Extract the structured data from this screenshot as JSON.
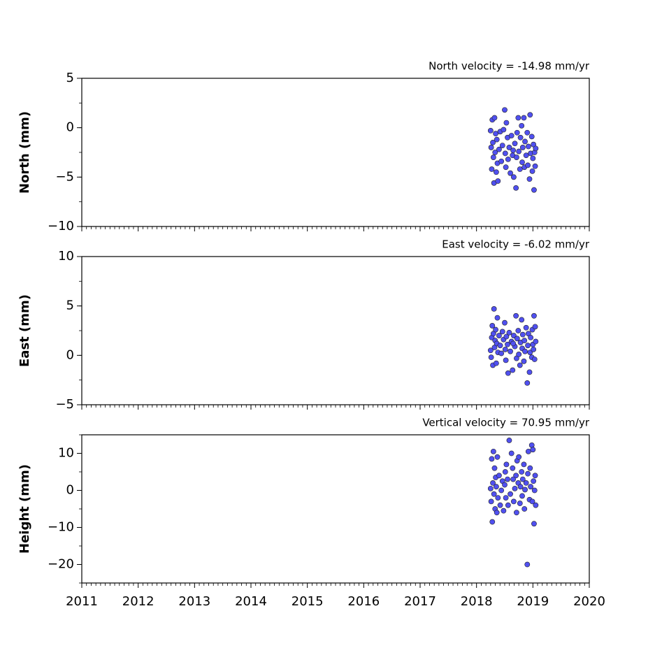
{
  "chart_data": [
    {
      "type": "scatter",
      "title": "North velocity = -14.98 mm/yr",
      "ylabel": "North (mm)",
      "xlim": [
        2011,
        2020
      ],
      "xticks": [
        2011,
        2012,
        2013,
        2014,
        2015,
        2016,
        2017,
        2018,
        2019,
        2020
      ],
      "show_xticklabels": false,
      "xminor_per_tick": 12,
      "ylim": [
        -10,
        5
      ],
      "yticks": [
        {
          "value": -10,
          "label": "−10"
        },
        {
          "value": -5,
          "label": "−5"
        },
        0,
        5
      ],
      "yminor_per_tick": 2,
      "color": "#5050f0",
      "x": [
        2018.25,
        2018.26,
        2018.27,
        2018.28,
        2018.29,
        2018.3,
        2018.31,
        2018.32,
        2018.33,
        2018.34,
        2018.35,
        2018.36,
        2018.37,
        2018.38,
        2018.4,
        2018.42,
        2018.44,
        2018.46,
        2018.48,
        2018.5,
        2018.51,
        2018.52,
        2018.53,
        2018.55,
        2018.56,
        2018.58,
        2018.6,
        2018.62,
        2018.64,
        2018.66,
        2018.68,
        2018.7,
        2018.71,
        2018.72,
        2018.74,
        2018.75,
        2018.77,
        2018.78,
        2018.8,
        2018.81,
        2018.82,
        2018.84,
        2018.85,
        2018.86,
        2018.88,
        2018.9,
        2018.91,
        2018.92,
        2018.94,
        2018.95,
        2018.96,
        2018.98,
        2018.99,
        2019.0,
        2019.01,
        2019.02,
        2019.03,
        2019.04,
        2019.05,
        2018.65
      ],
      "values": [
        -0.3,
        -2.0,
        -4.2,
        0.8,
        -1.5,
        -3.0,
        -5.6,
        1.0,
        -2.5,
        -0.6,
        -4.5,
        -1.2,
        -3.6,
        -5.4,
        -2.2,
        -0.4,
        -3.4,
        -1.8,
        -0.2,
        1.8,
        -2.6,
        -4.0,
        0.5,
        -1.0,
        -3.2,
        -2.0,
        -4.6,
        -0.8,
        -2.8,
        -5.0,
        -1.6,
        -6.1,
        -3.0,
        -0.5,
        1.0,
        -2.4,
        -4.2,
        -1.0,
        0.2,
        -3.5,
        -2.0,
        1.0,
        -4.0,
        -1.4,
        -2.8,
        -0.5,
        -3.8,
        -1.9,
        -5.2,
        1.3,
        -2.6,
        -0.9,
        -4.4,
        -3.1,
        -1.7,
        -6.3,
        -2.5,
        -3.9,
        -2.1,
        -2.3
      ]
    },
    {
      "type": "scatter",
      "title": "East velocity = -6.02 mm/yr",
      "ylabel": "East (mm)",
      "xlim": [
        2011,
        2020
      ],
      "xticks": [
        2011,
        2012,
        2013,
        2014,
        2015,
        2016,
        2017,
        2018,
        2019,
        2020
      ],
      "show_xticklabels": false,
      "xminor_per_tick": 12,
      "ylim": [
        -5,
        10
      ],
      "yticks": [
        {
          "value": -5,
          "label": "−5"
        },
        0,
        5,
        10
      ],
      "yminor_per_tick": 2,
      "color": "#5050f0",
      "x": [
        2018.25,
        2018.26,
        2018.27,
        2018.28,
        2018.29,
        2018.3,
        2018.31,
        2018.32,
        2018.33,
        2018.34,
        2018.35,
        2018.36,
        2018.37,
        2018.38,
        2018.4,
        2018.42,
        2018.44,
        2018.46,
        2018.48,
        2018.5,
        2018.51,
        2018.52,
        2018.53,
        2018.55,
        2018.56,
        2018.58,
        2018.6,
        2018.62,
        2018.64,
        2018.66,
        2018.68,
        2018.7,
        2018.71,
        2018.72,
        2018.74,
        2018.75,
        2018.77,
        2018.78,
        2018.8,
        2018.81,
        2018.82,
        2018.84,
        2018.85,
        2018.86,
        2018.88,
        2018.9,
        2018.91,
        2018.92,
        2018.94,
        2018.95,
        2018.96,
        2018.98,
        2018.99,
        2019.0,
        2019.01,
        2019.02,
        2019.03,
        2019.04,
        2019.05,
        2018.65
      ],
      "values": [
        0.5,
        -0.2,
        1.8,
        3.0,
        -1.0,
        2.2,
        4.7,
        0.8,
        1.5,
        2.6,
        -0.8,
        1.2,
        3.8,
        0.3,
        2.0,
        1.0,
        0.2,
        2.4,
        1.6,
        3.3,
        0.6,
        -0.5,
        1.9,
        1.1,
        -1.8,
        2.3,
        0.4,
        1.4,
        -1.5,
        2.0,
        0.9,
        4.0,
        -0.3,
        1.7,
        2.5,
        0.1,
        -1.0,
        1.3,
        3.6,
        0.7,
        2.1,
        -0.6,
        1.5,
        0.4,
        2.8,
        -2.8,
        1.0,
        2.2,
        -1.7,
        0.3,
        1.8,
        -0.2,
        2.6,
        1.1,
        0.6,
        4.0,
        -0.4,
        2.9,
        1.4,
        1.2
      ]
    },
    {
      "type": "scatter",
      "title": "Vertical velocity = 70.95 mm/yr",
      "ylabel": "Height (mm)",
      "xlim": [
        2011,
        2020
      ],
      "xticks": [
        2011,
        2012,
        2013,
        2014,
        2015,
        2016,
        2017,
        2018,
        2019,
        2020
      ],
      "show_xticklabels": true,
      "xminor_per_tick": 12,
      "ylim": [
        -25,
        15
      ],
      "yticks": [
        {
          "value": -20,
          "label": "−20"
        },
        {
          "value": -10,
          "label": "−10"
        },
        0,
        10
      ],
      "yminor_per_tick": 2,
      "color": "#5050f0",
      "x": [
        2018.25,
        2018.26,
        2018.27,
        2018.28,
        2018.29,
        2018.3,
        2018.31,
        2018.32,
        2018.33,
        2018.34,
        2018.35,
        2018.36,
        2018.37,
        2018.38,
        2018.4,
        2018.42,
        2018.44,
        2018.46,
        2018.48,
        2018.5,
        2018.51,
        2018.52,
        2018.53,
        2018.55,
        2018.56,
        2018.58,
        2018.6,
        2018.62,
        2018.64,
        2018.66,
        2018.68,
        2018.7,
        2018.71,
        2018.72,
        2018.74,
        2018.75,
        2018.77,
        2018.78,
        2018.8,
        2018.81,
        2018.82,
        2018.84,
        2018.85,
        2018.86,
        2018.88,
        2018.9,
        2018.91,
        2018.92,
        2018.94,
        2018.95,
        2018.96,
        2018.98,
        2018.99,
        2019.0,
        2019.01,
        2019.02,
        2019.03,
        2019.04,
        2019.05,
        2018.65
      ],
      "values": [
        0.5,
        -3,
        8.5,
        -8.5,
        2,
        10.5,
        -1,
        6,
        -5,
        3.5,
        1,
        -6,
        9,
        -2,
        4,
        -4,
        0,
        2.5,
        -5.5,
        1.5,
        5,
        -2,
        7,
        3,
        -4,
        13.5,
        -1,
        10,
        6,
        -3,
        0.5,
        4,
        -6,
        8,
        2,
        9,
        -3.5,
        1,
        5,
        -1.5,
        3,
        7,
        -5,
        0.2,
        2,
        -20,
        4.5,
        10.5,
        -2.5,
        6,
        1,
        12.2,
        -3,
        11,
        2.5,
        -9,
        0,
        4,
        -4,
        3
      ]
    }
  ]
}
